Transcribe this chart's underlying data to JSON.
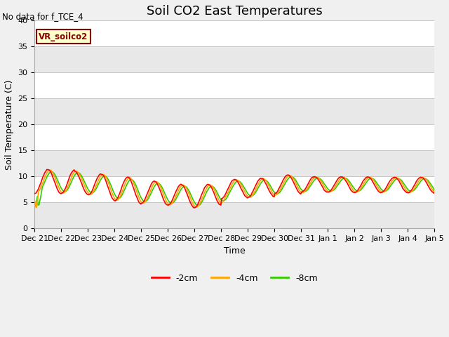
{
  "title": "Soil CO2 East Temperatures",
  "no_data_text": "No data for f_TCE_4",
  "ylabel": "Soil Temperature (C)",
  "xlabel": "Time",
  "ylim": [
    0,
    40
  ],
  "yticks": [
    0,
    5,
    10,
    15,
    20,
    25,
    30,
    35,
    40
  ],
  "fig_facecolor": "#f0f0f0",
  "plot_bg_color": "#ffffff",
  "band_colors": [
    "#e8e8e8",
    "#ffffff"
  ],
  "legend_items": [
    {
      "label": "-2cm",
      "color": "#ff0000"
    },
    {
      "label": "-4cm",
      "color": "#ffa500"
    },
    {
      "label": "-8cm",
      "color": "#33cc00"
    }
  ],
  "vr_label": "VR_soilco2",
  "vr_label_color": "#8b0000",
  "vr_box_facecolor": "#ffffcc",
  "vr_box_edgecolor": "#8b0000",
  "title_fontsize": 13,
  "axis_fontsize": 9,
  "tick_fontsize": 8,
  "n_points": 720,
  "line_width": 1.2,
  "x_tick_labels": [
    "Dec 21",
    "Dec 22",
    "Dec 23",
    "Dec 24",
    "Dec 25",
    "Dec 26",
    "Dec 27",
    "Dec 28",
    "Dec 29",
    "Dec 30",
    "Dec 31",
    "Jan 1",
    "Jan 2",
    "Jan 3",
    "Jan 4",
    "Jan 5"
  ]
}
